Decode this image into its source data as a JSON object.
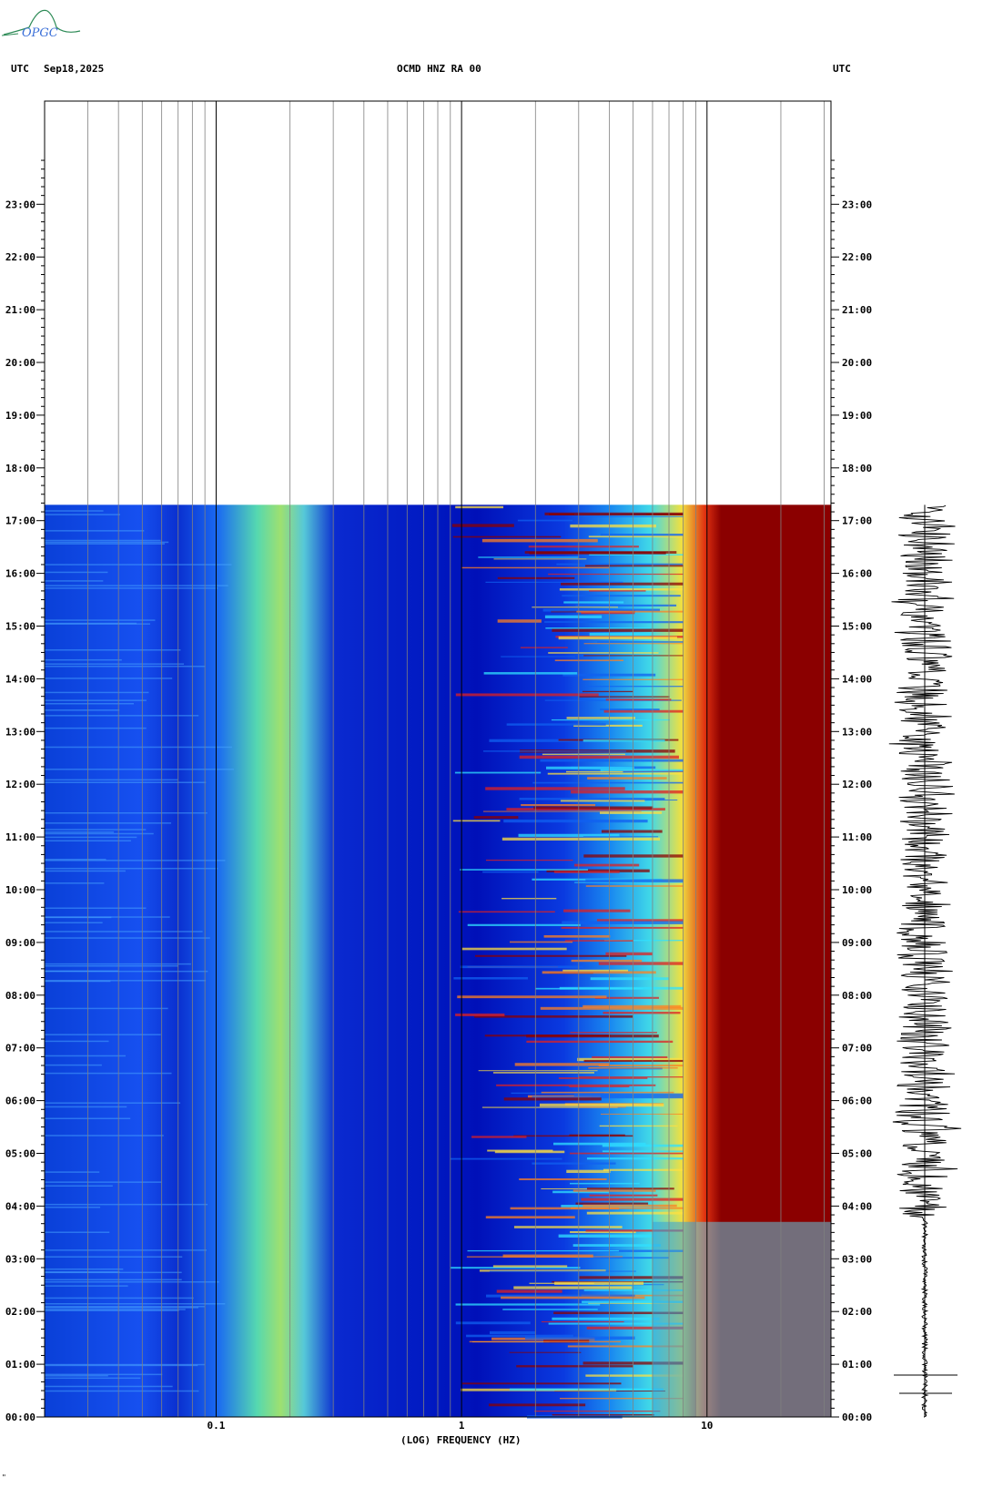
{
  "header": {
    "left_tz": "UTC",
    "date": "Sep18,2025",
    "station": "OCMD HNZ RA 00",
    "right_tz": "UTC"
  },
  "logo": {
    "text": "OPGC"
  },
  "footer_mark": "\"",
  "chart_data": {
    "type": "heatmap",
    "title": "OCMD HNZ RA 00",
    "xlabel": "(LOG) FREQUENCY (HZ)",
    "x_scale": "log",
    "xlim": [
      0.02,
      32
    ],
    "x_ticks": [
      {
        "value": 0.1,
        "label": "0.1"
      },
      {
        "value": 1,
        "label": "1"
      },
      {
        "value": 10,
        "label": "10"
      }
    ],
    "y_ticks": [
      "00:00",
      "01:00",
      "02:00",
      "03:00",
      "04:00",
      "05:00",
      "06:00",
      "07:00",
      "08:00",
      "09:00",
      "10:00",
      "11:00",
      "12:00",
      "13:00",
      "14:00",
      "15:00",
      "16:00",
      "17:00",
      "18:00",
      "19:00",
      "20:00",
      "21:00",
      "22:00",
      "23:00"
    ],
    "ylim_hours": [
      0,
      24
    ],
    "data_end_hour": 17.3,
    "colormap": [
      "#00008b",
      "#0000ff",
      "#00ffff",
      "#ffff00",
      "#ff0000",
      "#8b0000"
    ],
    "grid": true
  }
}
